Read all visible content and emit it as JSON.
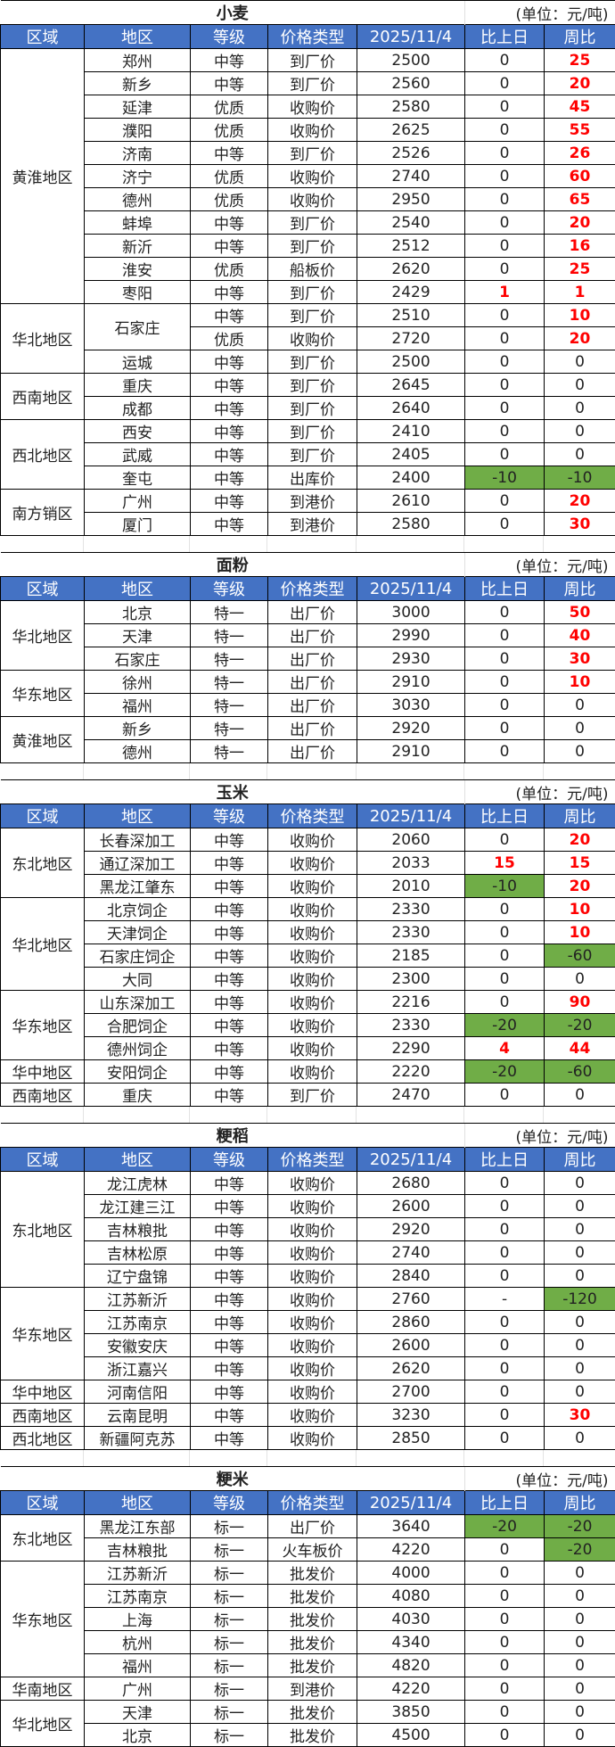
{
  "header_labels": [
    "区域",
    "地区",
    "等级",
    "价格类型",
    "2025/11/4",
    "比上日",
    "周比"
  ],
  "unit": "(单位：元/吨)",
  "colors": {
    "header_bg": "#4472C4",
    "up": "#FF0000",
    "down_bg": "#70AD47"
  },
  "sections": [
    {
      "title": "小麦",
      "rows": [
        [
          "黄淮地区",
          "郑州",
          "中等",
          "到厂价",
          "2500",
          "0",
          "25"
        ],
        [
          "黄淮地区",
          "新乡",
          "中等",
          "到厂价",
          "2560",
          "0",
          "20"
        ],
        [
          "黄淮地区",
          "延津",
          "优质",
          "收购价",
          "2580",
          "0",
          "45"
        ],
        [
          "黄淮地区",
          "濮阳",
          "优质",
          "收购价",
          "2625",
          "0",
          "55"
        ],
        [
          "黄淮地区",
          "济南",
          "中等",
          "到厂价",
          "2526",
          "0",
          "26"
        ],
        [
          "黄淮地区",
          "济宁",
          "优质",
          "收购价",
          "2740",
          "0",
          "60"
        ],
        [
          "黄淮地区",
          "德州",
          "优质",
          "收购价",
          "2950",
          "0",
          "65"
        ],
        [
          "黄淮地区",
          "蚌埠",
          "中等",
          "到厂价",
          "2540",
          "0",
          "20"
        ],
        [
          "黄淮地区",
          "新沂",
          "中等",
          "到厂价",
          "2512",
          "0",
          "16"
        ],
        [
          "黄淮地区",
          "淮安",
          "优质",
          "船板价",
          "2620",
          "0",
          "25"
        ],
        [
          "黄淮地区",
          "枣阳",
          "中等",
          "到厂价",
          "2429",
          "1",
          "1"
        ],
        [
          "华北地区",
          "石家庄",
          "中等",
          "到厂价",
          "2510",
          "0",
          "10"
        ],
        [
          "华北地区",
          "石家庄",
          "优质",
          "收购价",
          "2720",
          "0",
          "20"
        ],
        [
          "华北地区",
          "运城",
          "中等",
          "到厂价",
          "2500",
          "0",
          "0"
        ],
        [
          "西南地区",
          "重庆",
          "中等",
          "到厂价",
          "2645",
          "0",
          "0"
        ],
        [
          "西南地区",
          "成都",
          "中等",
          "到厂价",
          "2640",
          "0",
          "0"
        ],
        [
          "西北地区",
          "西安",
          "中等",
          "到厂价",
          "2410",
          "0",
          "0"
        ],
        [
          "西北地区",
          "武威",
          "中等",
          "到厂价",
          "2405",
          "0",
          "0"
        ],
        [
          "西北地区",
          "奎屯",
          "中等",
          "出库价",
          "2400",
          "-10",
          "-10"
        ],
        [
          "南方销区",
          "广州",
          "中等",
          "到港价",
          "2610",
          "0",
          "20"
        ],
        [
          "南方销区",
          "厦门",
          "中等",
          "到港价",
          "2580",
          "0",
          "30"
        ]
      ]
    },
    {
      "title": "面粉",
      "rows": [
        [
          "华北地区",
          "北京",
          "特一",
          "出厂价",
          "3000",
          "0",
          "50"
        ],
        [
          "华北地区",
          "天津",
          "特一",
          "出厂价",
          "2990",
          "0",
          "40"
        ],
        [
          "华北地区",
          "石家庄",
          "特一",
          "出厂价",
          "2930",
          "0",
          "30"
        ],
        [
          "华东地区",
          "徐州",
          "特一",
          "出厂价",
          "2910",
          "0",
          "10"
        ],
        [
          "华东地区",
          "福州",
          "特一",
          "出厂价",
          "3030",
          "0",
          "0"
        ],
        [
          "黄淮地区",
          "新乡",
          "特一",
          "出厂价",
          "2920",
          "0",
          "0"
        ],
        [
          "黄淮地区",
          "德州",
          "特一",
          "出厂价",
          "2910",
          "0",
          "0"
        ]
      ]
    },
    {
      "title": "玉米",
      "rows": [
        [
          "东北地区",
          "长春深加工",
          "中等",
          "收购价",
          "2060",
          "0",
          "20"
        ],
        [
          "东北地区",
          "通辽深加工",
          "中等",
          "收购价",
          "2033",
          "15",
          "15"
        ],
        [
          "东北地区",
          "黑龙江肇东",
          "中等",
          "收购价",
          "2010",
          "-10",
          "20"
        ],
        [
          "华北地区",
          "北京饲企",
          "中等",
          "收购价",
          "2330",
          "0",
          "10"
        ],
        [
          "华北地区",
          "天津饲企",
          "中等",
          "收购价",
          "2330",
          "0",
          "10"
        ],
        [
          "华北地区",
          "石家庄饲企",
          "中等",
          "收购价",
          "2185",
          "0",
          "-60"
        ],
        [
          "华北地区",
          "大同",
          "中等",
          "收购价",
          "2300",
          "0",
          "0"
        ],
        [
          "华东地区",
          "山东深加工",
          "中等",
          "收购价",
          "2216",
          "0",
          "90"
        ],
        [
          "华东地区",
          "合肥饲企",
          "中等",
          "收购价",
          "2330",
          "-20",
          "-20"
        ],
        [
          "华东地区",
          "德州饲企",
          "中等",
          "收购价",
          "2290",
          "4",
          "44"
        ],
        [
          "华中地区",
          "安阳饲企",
          "中等",
          "收购价",
          "2220",
          "-20",
          "-60"
        ],
        [
          "西南地区",
          "重庆",
          "中等",
          "到厂价",
          "2470",
          "0",
          "0"
        ]
      ]
    },
    {
      "title": "粳稻",
      "rows": [
        [
          "东北地区",
          "龙江虎林",
          "中等",
          "收购价",
          "2680",
          "0",
          "0"
        ],
        [
          "东北地区",
          "龙江建三江",
          "中等",
          "收购价",
          "2600",
          "0",
          "0"
        ],
        [
          "东北地区",
          "吉林粮批",
          "中等",
          "收购价",
          "2920",
          "0",
          "0"
        ],
        [
          "东北地区",
          "吉林松原",
          "中等",
          "收购价",
          "2740",
          "0",
          "0"
        ],
        [
          "东北地区",
          "辽宁盘锦",
          "中等",
          "收购价",
          "2840",
          "0",
          "0"
        ],
        [
          "华东地区",
          "江苏新沂",
          "中等",
          "收购价",
          "2760",
          "-",
          "-120"
        ],
        [
          "华东地区",
          "江苏南京",
          "中等",
          "收购价",
          "2860",
          "0",
          "0"
        ],
        [
          "华东地区",
          "安徽安庆",
          "中等",
          "收购价",
          "2600",
          "0",
          "0"
        ],
        [
          "华东地区",
          "浙江嘉兴",
          "中等",
          "收购价",
          "2620",
          "0",
          "0"
        ],
        [
          "华中地区",
          "河南信阳",
          "中等",
          "收购价",
          "2700",
          "0",
          "0"
        ],
        [
          "西南地区",
          "云南昆明",
          "中等",
          "收购价",
          "3230",
          "0",
          "30"
        ],
        [
          "西北地区",
          "新疆阿克苏",
          "中等",
          "收购价",
          "2850",
          "0",
          "0"
        ]
      ]
    },
    {
      "title": "粳米",
      "rows": [
        [
          "东北地区",
          "黑龙江东部",
          "标一",
          "出厂价",
          "3640",
          "-20",
          "-20"
        ],
        [
          "东北地区",
          "吉林粮批",
          "标一",
          "火车板价",
          "4220",
          "0",
          "-20"
        ],
        [
          "华东地区",
          "江苏新沂",
          "标一",
          "批发价",
          "4000",
          "0",
          "0"
        ],
        [
          "华东地区",
          "江苏南京",
          "标一",
          "批发价",
          "4080",
          "0",
          "0"
        ],
        [
          "华东地区",
          "上海",
          "标一",
          "批发价",
          "4030",
          "0",
          "0"
        ],
        [
          "华东地区",
          "杭州",
          "标一",
          "批发价",
          "4340",
          "0",
          "0"
        ],
        [
          "华东地区",
          "福州",
          "标一",
          "批发价",
          "4820",
          "0",
          "0"
        ],
        [
          "华南地区",
          "广州",
          "标一",
          "到港价",
          "4220",
          "0",
          "0"
        ],
        [
          "华北地区",
          "天津",
          "标一",
          "批发价",
          "3850",
          "0",
          "0"
        ],
        [
          "华北地区",
          "北京",
          "标一",
          "批发价",
          "4500",
          "0",
          "0"
        ]
      ]
    }
  ]
}
